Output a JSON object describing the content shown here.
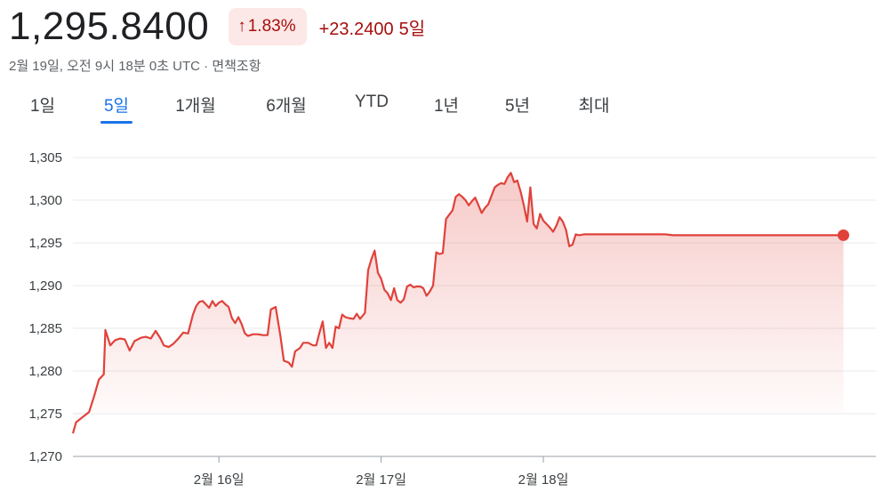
{
  "header": {
    "price": "1,295.8400",
    "change_percent": "1.83%",
    "change_arrow": "↑",
    "change_value": "+23.2400",
    "change_period": "5일",
    "timestamp": "2월 19일, 오전 9시 18분 0초 UTC · 면책조항"
  },
  "tabs": [
    {
      "label": "1일",
      "active": false
    },
    {
      "label": "5일",
      "active": true
    },
    {
      "label": "1개월",
      "active": false
    },
    {
      "label": "6개월",
      "active": false
    },
    {
      "label": "YTD",
      "active": false
    },
    {
      "label": "1년",
      "active": false
    },
    {
      "label": "5년",
      "active": false
    },
    {
      "label": "최대",
      "active": false
    }
  ],
  "colors": {
    "line": "#e0423b",
    "down_badge_bg": "#fce8e6",
    "down_text": "#a50e0e",
    "accent": "#1a73e8"
  },
  "chart_data": {
    "type": "area",
    "title": "",
    "xlabel": "",
    "ylabel": "",
    "ylim": [
      1270,
      1305
    ],
    "y_ticks": [
      "1,305",
      "1,300",
      "1,295",
      "1,290",
      "1,285",
      "1,280",
      "1,275",
      "1,270"
    ],
    "y_tick_values": [
      1305,
      1300,
      1295,
      1290,
      1285,
      1280,
      1275,
      1270
    ],
    "x_ticks": [
      "2월 16일",
      "2월 17일",
      "2월 18일"
    ],
    "x_tick_values": [
      1,
      2,
      3
    ],
    "xlim": [
      0.1,
      5.05
    ],
    "grid": true,
    "series": [
      {
        "values": [
          [
            0.1,
            1272.7
          ],
          [
            0.12,
            1274.0
          ],
          [
            0.16,
            1274.6
          ],
          [
            0.2,
            1275.2
          ],
          [
            0.23,
            1277.0
          ],
          [
            0.26,
            1279.0
          ],
          [
            0.29,
            1279.6
          ],
          [
            0.3,
            1284.8
          ],
          [
            0.33,
            1283.0
          ],
          [
            0.36,
            1283.6
          ],
          [
            0.39,
            1283.8
          ],
          [
            0.42,
            1283.7
          ],
          [
            0.45,
            1282.4
          ],
          [
            0.48,
            1283.5
          ],
          [
            0.52,
            1283.9
          ],
          [
            0.55,
            1284.0
          ],
          [
            0.58,
            1283.8
          ],
          [
            0.61,
            1284.7
          ],
          [
            0.64,
            1283.8
          ],
          [
            0.66,
            1283.0
          ],
          [
            0.69,
            1282.8
          ],
          [
            0.72,
            1283.2
          ],
          [
            0.75,
            1283.8
          ],
          [
            0.78,
            1284.5
          ],
          [
            0.81,
            1284.4
          ],
          [
            0.84,
            1286.6
          ],
          [
            0.86,
            1287.6
          ],
          [
            0.88,
            1288.1
          ],
          [
            0.9,
            1288.2
          ],
          [
            0.92,
            1287.8
          ],
          [
            0.94,
            1287.4
          ],
          [
            0.96,
            1288.2
          ],
          [
            0.98,
            1287.6
          ],
          [
            1.0,
            1288.0
          ],
          [
            1.02,
            1288.2
          ],
          [
            1.04,
            1287.8
          ],
          [
            1.06,
            1287.5
          ],
          [
            1.08,
            1286.2
          ],
          [
            1.1,
            1285.6
          ],
          [
            1.12,
            1286.3
          ],
          [
            1.14,
            1285.5
          ],
          [
            1.16,
            1284.4
          ],
          [
            1.18,
            1284.1
          ],
          [
            1.21,
            1284.3
          ],
          [
            1.24,
            1284.3
          ],
          [
            1.27,
            1284.2
          ],
          [
            1.3,
            1284.2
          ],
          [
            1.32,
            1287.2
          ],
          [
            1.35,
            1287.5
          ],
          [
            1.38,
            1284.0
          ],
          [
            1.4,
            1281.2
          ],
          [
            1.43,
            1281.0
          ],
          [
            1.45,
            1280.5
          ],
          [
            1.47,
            1282.3
          ],
          [
            1.5,
            1282.7
          ],
          [
            1.52,
            1283.3
          ],
          [
            1.55,
            1283.3
          ],
          [
            1.58,
            1283.0
          ],
          [
            1.6,
            1283.0
          ],
          [
            1.62,
            1284.5
          ],
          [
            1.64,
            1285.8
          ],
          [
            1.66,
            1282.7
          ],
          [
            1.68,
            1283.3
          ],
          [
            1.7,
            1282.7
          ],
          [
            1.72,
            1285.2
          ],
          [
            1.74,
            1285.0
          ],
          [
            1.76,
            1286.6
          ],
          [
            1.78,
            1286.3
          ],
          [
            1.8,
            1286.2
          ],
          [
            1.83,
            1286.1
          ],
          [
            1.85,
            1286.7
          ],
          [
            1.87,
            1286.1
          ],
          [
            1.9,
            1286.8
          ],
          [
            1.92,
            1291.8
          ],
          [
            1.94,
            1293.1
          ],
          [
            1.96,
            1294.1
          ],
          [
            1.98,
            1291.5
          ],
          [
            2.0,
            1290.8
          ],
          [
            2.02,
            1289.5
          ],
          [
            2.04,
            1289.1
          ],
          [
            2.06,
            1288.3
          ],
          [
            2.08,
            1289.7
          ],
          [
            2.1,
            1288.3
          ],
          [
            2.12,
            1288.0
          ],
          [
            2.14,
            1288.4
          ],
          [
            2.16,
            1289.9
          ],
          [
            2.18,
            1290.1
          ],
          [
            2.2,
            1289.8
          ],
          [
            2.22,
            1289.9
          ],
          [
            2.24,
            1289.9
          ],
          [
            2.26,
            1289.7
          ],
          [
            2.28,
            1288.8
          ],
          [
            2.3,
            1289.3
          ],
          [
            2.32,
            1290.0
          ],
          [
            2.34,
            1293.9
          ],
          [
            2.36,
            1293.7
          ],
          [
            2.38,
            1293.8
          ],
          [
            2.4,
            1297.8
          ],
          [
            2.42,
            1298.3
          ],
          [
            2.44,
            1298.8
          ],
          [
            2.46,
            1300.4
          ],
          [
            2.48,
            1300.7
          ],
          [
            2.5,
            1300.4
          ],
          [
            2.52,
            1300.0
          ],
          [
            2.54,
            1299.4
          ],
          [
            2.56,
            1299.9
          ],
          [
            2.58,
            1300.3
          ],
          [
            2.6,
            1299.4
          ],
          [
            2.62,
            1298.5
          ],
          [
            2.64,
            1299.1
          ],
          [
            2.66,
            1299.5
          ],
          [
            2.68,
            1300.5
          ],
          [
            2.7,
            1301.5
          ],
          [
            2.72,
            1301.8
          ],
          [
            2.74,
            1302.0
          ],
          [
            2.76,
            1301.9
          ],
          [
            2.78,
            1302.7
          ],
          [
            2.8,
            1303.2
          ],
          [
            2.82,
            1302.1
          ],
          [
            2.84,
            1302.3
          ],
          [
            2.86,
            1301.0
          ],
          [
            2.88,
            1299.4
          ],
          [
            2.9,
            1297.5
          ],
          [
            2.92,
            1301.5
          ],
          [
            2.94,
            1297.2
          ],
          [
            2.96,
            1296.7
          ],
          [
            2.98,
            1298.4
          ],
          [
            3.0,
            1297.6
          ],
          [
            3.02,
            1297.2
          ],
          [
            3.04,
            1296.8
          ],
          [
            3.06,
            1296.3
          ],
          [
            3.08,
            1297.0
          ],
          [
            3.1,
            1298.0
          ],
          [
            3.12,
            1297.5
          ],
          [
            3.14,
            1296.5
          ],
          [
            3.16,
            1294.6
          ],
          [
            3.18,
            1294.8
          ],
          [
            3.2,
            1296.0
          ],
          [
            3.22,
            1295.9
          ],
          [
            3.25,
            1296.0
          ],
          [
            3.5,
            1296.0
          ],
          [
            3.75,
            1296.0
          ],
          [
            3.8,
            1295.9
          ],
          [
            4.2,
            1295.9
          ],
          [
            4.6,
            1295.9
          ],
          [
            4.85,
            1295.9
          ]
        ],
        "last_point": [
          4.85,
          1295.9
        ]
      }
    ]
  }
}
